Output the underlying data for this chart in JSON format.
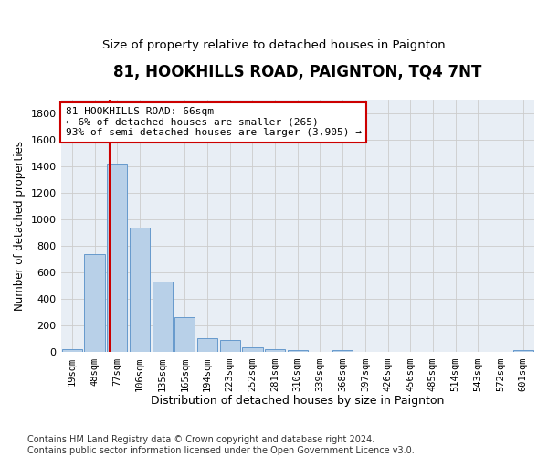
{
  "title1": "81, HOOKHILLS ROAD, PAIGNTON, TQ4 7NT",
  "title2": "Size of property relative to detached houses in Paignton",
  "xlabel": "Distribution of detached houses by size in Paignton",
  "ylabel": "Number of detached properties",
  "bar_labels": [
    "19sqm",
    "48sqm",
    "77sqm",
    "106sqm",
    "135sqm",
    "165sqm",
    "194sqm",
    "223sqm",
    "252sqm",
    "281sqm",
    "310sqm",
    "339sqm",
    "368sqm",
    "397sqm",
    "426sqm",
    "456sqm",
    "485sqm",
    "514sqm",
    "543sqm",
    "572sqm",
    "601sqm"
  ],
  "bar_values": [
    22,
    740,
    1420,
    940,
    530,
    265,
    105,
    93,
    38,
    27,
    15,
    0,
    17,
    0,
    0,
    0,
    0,
    0,
    0,
    0,
    17
  ],
  "bar_color": "#b8d0e8",
  "bar_edge_color": "#6699cc",
  "annotation_title": "81 HOOKHILLS ROAD: 66sqm",
  "annotation_line1": "← 6% of detached houses are smaller (265)",
  "annotation_line2": "93% of semi-detached houses are larger (3,905) →",
  "annotation_box_facecolor": "#ffffff",
  "annotation_box_edgecolor": "#cc0000",
  "red_line_color": "#cc0000",
  "grid_color": "#cccccc",
  "axes_bg_color": "#e8eef5",
  "background_color": "#ffffff",
  "footer": "Contains HM Land Registry data © Crown copyright and database right 2024.\nContains public sector information licensed under the Open Government Licence v3.0.",
  "ylim": [
    0,
    1900
  ],
  "yticks": [
    0,
    200,
    400,
    600,
    800,
    1000,
    1200,
    1400,
    1600,
    1800
  ]
}
